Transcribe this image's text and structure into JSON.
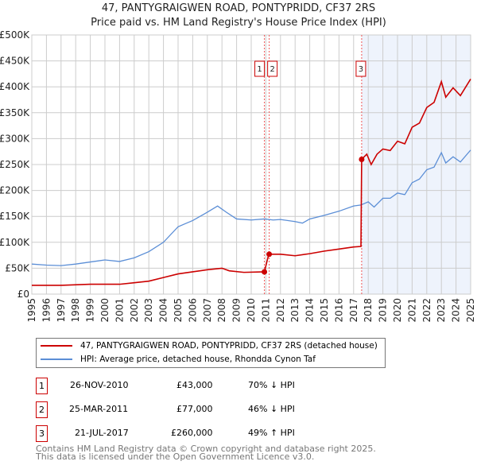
{
  "chart_data": {
    "type": "line",
    "title": "47, PANTYGRAIGWEN ROAD, PONTYPRIDD, CF37 2RS",
    "subtitle": "Price paid vs. HM Land Registry's House Price Index (HPI)",
    "xlim": [
      1995,
      2025
    ],
    "ylim": [
      0,
      500000
    ],
    "x_ticks": [
      "1995",
      "1996",
      "1997",
      "1998",
      "1999",
      "2000",
      "2001",
      "2002",
      "2003",
      "2004",
      "2005",
      "2006",
      "2007",
      "2008",
      "2009",
      "2010",
      "2011",
      "2012",
      "2013",
      "2014",
      "2015",
      "2016",
      "2017",
      "2018",
      "2019",
      "2020",
      "2021",
      "2022",
      "2023",
      "2024",
      "2025"
    ],
    "y_ticks": [
      {
        "v": 0,
        "label": "£0"
      },
      {
        "v": 50000,
        "label": "£50K"
      },
      {
        "v": 100000,
        "label": "£100K"
      },
      {
        "v": 150000,
        "label": "£150K"
      },
      {
        "v": 200000,
        "label": "£200K"
      },
      {
        "v": 250000,
        "label": "£250K"
      },
      {
        "v": 300000,
        "label": "£300K"
      },
      {
        "v": 350000,
        "label": "£350K"
      },
      {
        "v": 400000,
        "label": "£400K"
      },
      {
        "v": 450000,
        "label": "£450K"
      },
      {
        "v": 500000,
        "label": "£500K"
      }
    ],
    "grid": true,
    "shaded_from": 2017.55,
    "series": [
      {
        "name": "47, PANTYGRAIGWEN ROAD, PONTYPRIDD, CF37 2RS (detached house)",
        "color": "#cc0000",
        "x": [
          1995,
          1997,
          1999,
          2001,
          2002,
          2003,
          2004,
          2005,
          2006,
          2007,
          2008,
          2008.5,
          2009.5,
          2010.9,
          2011.2,
          2012,
          2013,
          2014,
          2015,
          2016,
          2017,
          2017.5,
          2017.55,
          2017.9,
          2018.2,
          2018.6,
          2019,
          2019.5,
          2020,
          2020.5,
          2021,
          2021.5,
          2022,
          2022.5,
          2023,
          2023.3,
          2023.8,
          2024.3,
          2025
        ],
        "y": [
          17000,
          17000,
          19000,
          19000,
          22000,
          25000,
          32000,
          39000,
          43000,
          47000,
          50000,
          45000,
          42000,
          43000,
          77000,
          77000,
          74000,
          78000,
          83000,
          87000,
          91000,
          92000,
          260000,
          270000,
          250000,
          270000,
          280000,
          277000,
          295000,
          290000,
          322000,
          330000,
          360000,
          370000,
          410000,
          380000,
          398000,
          383000,
          415000
        ]
      },
      {
        "name": "HPI: Average price, detached house, Rhondda Cynon Taf",
        "color": "#5b8ed6",
        "x": [
          1995,
          1996,
          1997,
          1998,
          1999,
          2000,
          2001,
          2002,
          2003,
          2004,
          2005,
          2005.5,
          2006,
          2006.5,
          2007,
          2007.7,
          2008.3,
          2009,
          2010,
          2010.9,
          2011.5,
          2012,
          2013,
          2013.5,
          2014,
          2015,
          2016,
          2017,
          2017.5,
          2018,
          2018.4,
          2019,
          2019.5,
          2020,
          2020.5,
          2021,
          2021.5,
          2022,
          2022.5,
          2023,
          2023.3,
          2023.8,
          2024.3,
          2025
        ],
        "y": [
          58000,
          56000,
          55000,
          58000,
          62000,
          66000,
          63000,
          70000,
          82000,
          100000,
          130000,
          136000,
          142000,
          150000,
          158000,
          170000,
          158000,
          145000,
          143000,
          145000,
          143000,
          144000,
          140000,
          137000,
          145000,
          152000,
          160000,
          170000,
          172000,
          178000,
          168000,
          185000,
          185000,
          195000,
          192000,
          215000,
          222000,
          240000,
          245000,
          273000,
          253000,
          265000,
          255000,
          278000
        ]
      }
    ],
    "sales": [
      {
        "n": "1",
        "x": 2010.9,
        "y": 43000,
        "date": "26-NOV-2010",
        "price": "£43,000",
        "hpi": "70% ↓ HPI"
      },
      {
        "n": "2",
        "x": 2011.23,
        "y": 77000,
        "date": "25-MAR-2011",
        "price": "£77,000",
        "hpi": "46% ↓ HPI"
      },
      {
        "n": "3",
        "x": 2017.55,
        "y": 260000,
        "date": "21-JUL-2017",
        "price": "£260,000",
        "hpi": "49% ↑ HPI"
      }
    ]
  },
  "footer": {
    "line1": "Contains HM Land Registry data © Crown copyright and database right 2025.",
    "line2": "This data is licensed under the Open Government Licence v3.0."
  }
}
